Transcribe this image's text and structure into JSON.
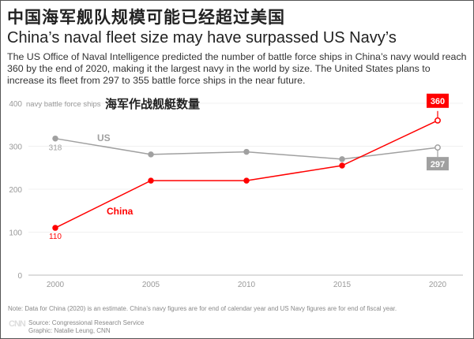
{
  "header": {
    "title_cn": "中国海军舰队规模可能已经超过美国",
    "title_en": "China’s naval fleet size may have surpassed US Navy’s",
    "description": "The US Office of Naval Intelligence predicted the number of battle force ships in China’s navy would reach 360 by the end of 2020, making it the largest navy in the world by size. The United States plans to increase its fleet from 297 to 355 battle force ships in the near future."
  },
  "chart_data": {
    "type": "line",
    "title": "海军作战舰艇数量",
    "ylabel": "navy battle force ships",
    "x": [
      2000,
      2005,
      2010,
      2015,
      2020
    ],
    "xticks": [
      "2000",
      "2005",
      "2010",
      "2015",
      "2020"
    ],
    "yticks": [
      "0",
      "100",
      "200",
      "300",
      "400"
    ],
    "ylim": [
      0,
      400
    ],
    "grid": true,
    "series": [
      {
        "name": "US",
        "values": [
          318,
          281,
          287,
          270,
          297
        ],
        "color": "#a0a0a0",
        "labels": {
          "2000": "318",
          "2020": "297"
        }
      },
      {
        "name": "China",
        "values": [
          110,
          220,
          220,
          255,
          360
        ],
        "color": "#ff0000",
        "labels": {
          "2000": "110",
          "2020": "360"
        }
      }
    ]
  },
  "footer": {
    "note": "Note: Data for China (2020) is an estimate. China’s navy figures are for end of calendar year and US Navy figures are for end of fiscal year.",
    "logo": "CNN",
    "source": "Source: Congressional Research Service",
    "graphic": "Graphic: Natalie Leung, CNN"
  }
}
